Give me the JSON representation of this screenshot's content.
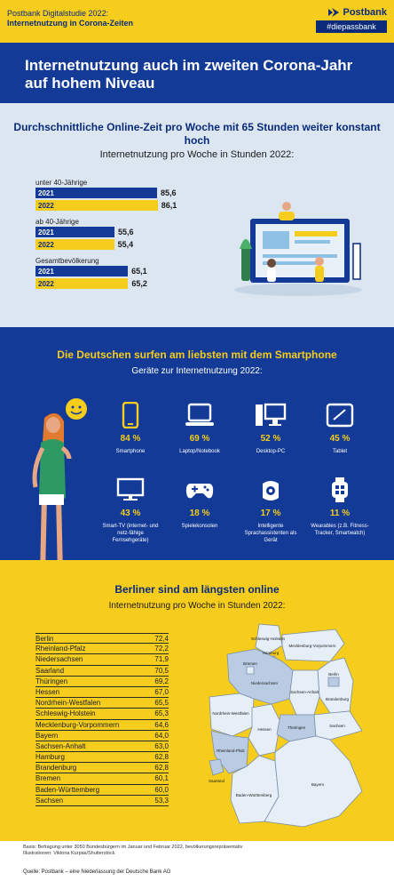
{
  "header": {
    "study_line1": "Postbank Digitalstudie 2022:",
    "study_line2": "Internetnutzung in Corona-Zeiten",
    "brand": "Postbank",
    "hashtag": "#diepassbank",
    "colors": {
      "yellow": "#f6cd1c",
      "blue": "#123a96"
    }
  },
  "title": "Internetnutzung auch im zweiten Corona-Jahr auf hohem Niveau",
  "chart_data": [
    {
      "type": "bar",
      "title": "Durchschnittliche Online-Zeit pro Woche mit 65 Stunden weiter konstant hoch",
      "subtitle": "Internetnutzung pro Woche in Stunden 2022:",
      "categories": [
        "unter 40-Jährige",
        "ab 40-Jährige",
        "Gesamtbevölkerung"
      ],
      "series": [
        {
          "name": "2021",
          "values": [
            85.6,
            55.6,
            65.1
          ],
          "labels": [
            "85,6",
            "55,6",
            "65,1"
          ]
        },
        {
          "name": "2022",
          "values": [
            86.1,
            55.4,
            65.2
          ],
          "labels": [
            "86,1",
            "55,4",
            "65,2"
          ]
        }
      ],
      "xlim": [
        0,
        100
      ]
    },
    {
      "type": "table",
      "title": "Die Deutschen surfen am liebsten mit dem Smartphone",
      "subtitle": "Geräte zur Internetnutzung 2022:",
      "devices": [
        {
          "icon": "smartphone-icon",
          "pct": "84 %",
          "value": 84,
          "label": "Smartphone"
        },
        {
          "icon": "laptop-icon",
          "pct": "69 %",
          "value": 69,
          "label": "Laptop/Notebook"
        },
        {
          "icon": "desktop-pc-icon",
          "pct": "52 %",
          "value": 52,
          "label": "Desktop-PC"
        },
        {
          "icon": "tablet-icon",
          "pct": "45 %",
          "value": 45,
          "label": "Tablet"
        },
        {
          "icon": "smart-tv-icon",
          "pct": "43 %",
          "value": 43,
          "label": "Smart-TV (internet- und netz-fähige Fernsehgeräte)"
        },
        {
          "icon": "gamepad-icon",
          "pct": "18 %",
          "value": 18,
          "label": "Spielekonsolen"
        },
        {
          "icon": "smart-speaker-icon",
          "pct": "17 %",
          "value": 17,
          "label": "Intelligente Sprachassistenten als Gerät"
        },
        {
          "icon": "smartwatch-icon",
          "pct": "11 %",
          "value": 11,
          "label": "Wearables (z.B. Fitness-Tracker, Smartwatch)"
        }
      ]
    },
    {
      "type": "table",
      "title": "Berliner sind am längsten online",
      "subtitle": "Internetnutzung pro Woche in Stunden 2022:",
      "rows": [
        {
          "state": "Berlin",
          "value": "72,4"
        },
        {
          "state": "Rheinland-Pfalz",
          "value": "72,2"
        },
        {
          "state": "Niedersachsen",
          "value": "71,9"
        },
        {
          "state": "Saarland",
          "value": "70,5"
        },
        {
          "state": "Thüringen",
          "value": "69,2"
        },
        {
          "state": "Hessen",
          "value": "67,0"
        },
        {
          "state": "Nordrhein-Westfalen",
          "value": "65,5"
        },
        {
          "state": "Schleswig-Holstein",
          "value": "65,3"
        },
        {
          "state": "Mecklenburg-Vorpommern",
          "value": "64,6"
        },
        {
          "state": "Bayern",
          "value": "64,0"
        },
        {
          "state": "Sachsen-Anhalt",
          "value": "63,0"
        },
        {
          "state": "Hamburg",
          "value": "62,8"
        },
        {
          "state": "Brandenburg",
          "value": "62,8"
        },
        {
          "state": "Bremen",
          "value": "60,1"
        },
        {
          "state": "Baden-Württemberg",
          "value": "60,0"
        },
        {
          "state": "Sachsen",
          "value": "53,3"
        }
      ],
      "map_labels": [
        "Schleswig-Holstein",
        "Mecklenburg-Vorpommern",
        "Hamburg",
        "Bremen",
        "Niedersachsen",
        "Berlin",
        "Brandenburg",
        "Sachsen-Anhalt",
        "Nordrhein-Westfalen",
        "Hessen",
        "Thüringen",
        "Sachsen",
        "Rheinland-Pfalz",
        "Saarland",
        "Baden-Württemberg",
        "Bayern"
      ]
    }
  ],
  "footer": {
    "basis": "Basis: Befragung unter 3050 Bundesbürgern im Januar und Februar 2022, bevölkerungsrepräsentativ",
    "illustration": "Illustrationen: Viktoria Kurpas/Shutterstock",
    "source": "Quelle: Postbank – eine Niederlassung der Deutsche Bank AG"
  }
}
